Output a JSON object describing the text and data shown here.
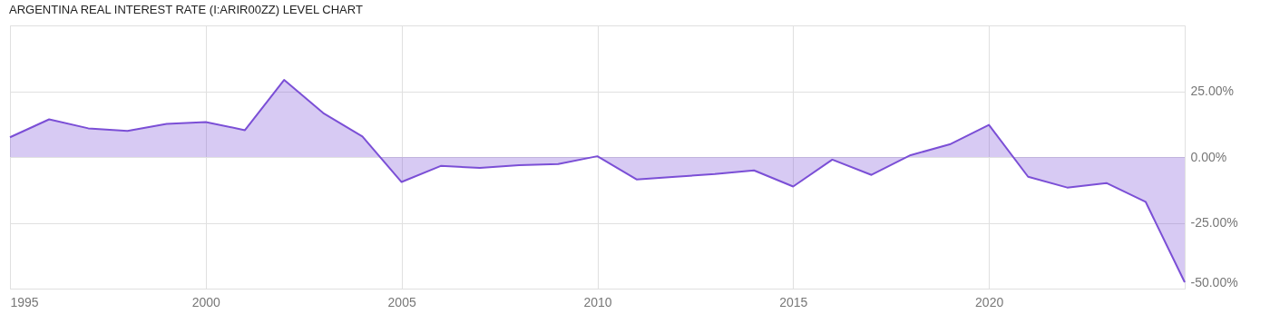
{
  "chart_data": {
    "type": "area",
    "title": "ARGENTINA REAL INTEREST RATE (I:ARIR00ZZ) LEVEL CHART",
    "x": [
      1995,
      1996,
      1997,
      1998,
      1999,
      2000,
      2001,
      2002,
      2003,
      2004,
      2005,
      2006,
      2007,
      2008,
      2009,
      2010,
      2011,
      2012,
      2013,
      2014,
      2015,
      2016,
      2017,
      2018,
      2019,
      2020,
      2021,
      2022,
      2023,
      2024,
      2025
    ],
    "series": [
      {
        "color": "#7b4fd6",
        "values": [
          7.5,
          14.3,
          10.9,
          9.9,
          12.6,
          13.3,
          10.2,
          29.3,
          16.7,
          7.8,
          -9.5,
          -3.4,
          -4.1,
          -3.1,
          -2.7,
          0.3,
          -8.5,
          -7.5,
          -6.5,
          -5.1,
          -11.2,
          -1.0,
          -6.8,
          0.7,
          4.8,
          12.2,
          -7.5,
          -11.6,
          -9.9,
          -17.0,
          -47.6
        ]
      }
    ],
    "xlim": [
      1995,
      2025
    ],
    "xticks": [
      1995,
      2000,
      2005,
      2010,
      2015,
      2020
    ],
    "ylim": [
      -50,
      50
    ],
    "yticks": [
      {
        "value": -50,
        "label": "-50.00%"
      },
      {
        "value": -25,
        "label": "-25.00%"
      },
      {
        "value": 0,
        "label": "0.00%"
      },
      {
        "value": 25,
        "label": "25.00%"
      },
      {
        "value": 50,
        "label": null
      }
    ],
    "grid": true
  }
}
